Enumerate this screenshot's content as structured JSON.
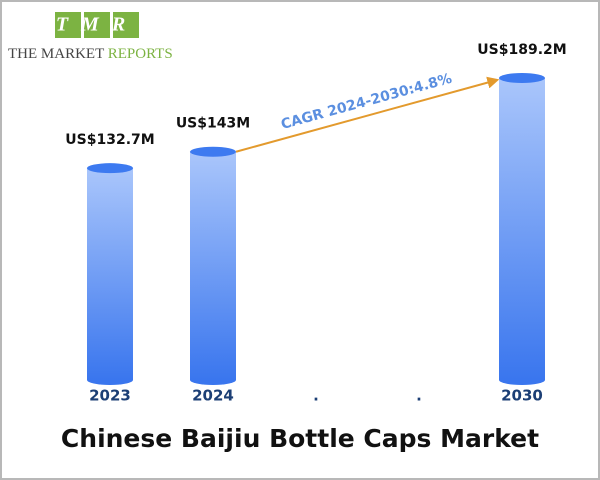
{
  "logo": {
    "mark": "TMR",
    "name_dark": "THE MARKET",
    "name_green": "REPORTS"
  },
  "chart_data": {
    "type": "bar",
    "title": "Chinese Baijiu Bottle Caps Market",
    "categories": [
      "2023",
      "2024",
      ".",
      ".",
      "2030"
    ],
    "values": [
      132.7,
      143,
      null,
      null,
      189.2
    ],
    "value_labels": [
      "US$132.7M",
      "US$143M",
      null,
      null,
      "US$189.2M"
    ],
    "annotation": "CAGR 2024-2030:4.8%",
    "color": "#3d7af0"
  }
}
